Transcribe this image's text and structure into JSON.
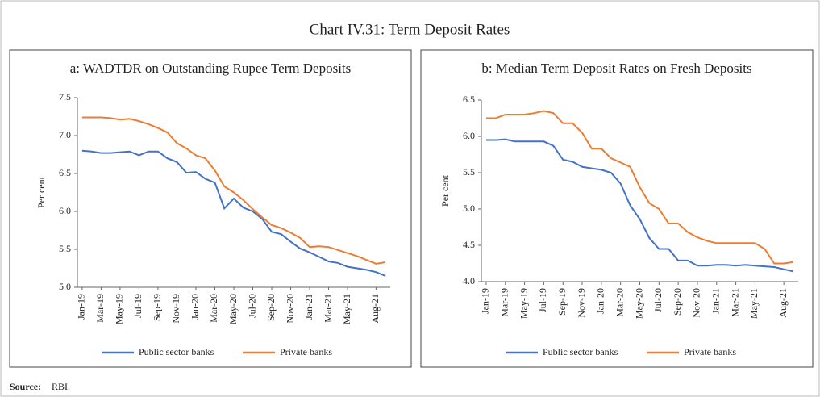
{
  "title": "Chart IV.31: Term Deposit Rates",
  "source_label": "Source:",
  "source": "RBI.",
  "chart_data": [
    {
      "type": "line",
      "title": "a: WADTDR on Outstanding Rupee Term Deposits",
      "y_label": "Per cent",
      "categories": [
        "Jan-19",
        null,
        "Mar-19",
        null,
        "May-19",
        null,
        "Jul-19",
        null,
        "Sep-19",
        null,
        "Nov-19",
        null,
        "Jan-20",
        null,
        "Mar-20",
        null,
        "May-20",
        null,
        "Jul-20",
        null,
        "Sep-20",
        null,
        "Nov-20",
        null,
        "Jan-21",
        null,
        "Mar-21",
        null,
        "May-21",
        null,
        null,
        "Aug-21",
        null
      ],
      "ylim": [
        5.0,
        7.5
      ],
      "yticks": [
        {
          "value": 5.0,
          "label": "5.0"
        },
        5.5,
        {
          "value": 6.0,
          "label": "6.0"
        },
        6.5,
        {
          "value": 7.0,
          "label": "7.0"
        },
        7.5
      ],
      "series": [
        {
          "name": "Public sector banks",
          "color": "#4472c4",
          "values": [
            6.8,
            6.79,
            6.77,
            6.77,
            6.78,
            6.79,
            6.74,
            6.79,
            6.79,
            6.7,
            6.65,
            6.51,
            6.52,
            6.43,
            6.38,
            6.04,
            6.17,
            6.05,
            6.0,
            5.9,
            5.73,
            5.7,
            5.6,
            5.51,
            5.46,
            5.4,
            5.34,
            5.32,
            5.27,
            5.25,
            5.23,
            5.2,
            5.15
          ]
        },
        {
          "name": "Private banks",
          "color": "#ed7d31",
          "values": [
            7.24,
            7.24,
            7.24,
            7.23,
            7.21,
            7.22,
            7.19,
            7.15,
            7.1,
            7.04,
            6.9,
            6.83,
            6.74,
            6.7,
            6.54,
            6.33,
            6.25,
            6.15,
            6.03,
            5.92,
            5.82,
            5.78,
            5.72,
            5.65,
            5.53,
            5.54,
            5.53,
            5.49,
            5.45,
            5.41,
            5.36,
            5.31,
            5.33
          ]
        }
      ]
    },
    {
      "type": "line",
      "title": "b: Median Term Deposit Rates on Fresh Deposits",
      "y_label": "Per cent",
      "categories": [
        "Jan-19",
        null,
        "Mar-19",
        null,
        "May-19",
        null,
        "Jul-19",
        null,
        "Sep-19",
        null,
        "Nov-19",
        null,
        "Jan-20",
        null,
        "Mar-20",
        null,
        "May-20",
        null,
        "Jul-20",
        null,
        "Sep-20",
        null,
        "Nov-20",
        null,
        "Jan-21",
        null,
        "Mar-21",
        null,
        "May-21",
        null,
        null,
        "Aug-21",
        null
      ],
      "ylim": [
        4.0,
        6.5
      ],
      "yticks": [
        {
          "value": 4.0,
          "label": "4.0"
        },
        4.5,
        {
          "value": 5.0,
          "label": "5.0"
        },
        5.5,
        {
          "value": 6.0,
          "label": "6.0"
        },
        6.5
      ],
      "series": [
        {
          "name": "Public sector banks",
          "color": "#4472c4",
          "values": [
            5.95,
            5.95,
            5.96,
            5.93,
            5.93,
            5.93,
            5.93,
            5.87,
            5.68,
            5.65,
            5.58,
            5.56,
            5.54,
            5.5,
            5.35,
            5.05,
            4.86,
            4.6,
            4.45,
            4.45,
            4.29,
            4.29,
            4.22,
            4.22,
            4.23,
            4.23,
            4.22,
            4.23,
            4.22,
            4.21,
            4.2,
            4.17,
            4.14
          ]
        },
        {
          "name": "Private banks",
          "color": "#ed7d31",
          "values": [
            6.25,
            6.25,
            6.3,
            6.3,
            6.3,
            6.32,
            6.35,
            6.32,
            6.18,
            6.18,
            6.05,
            5.83,
            5.83,
            5.7,
            5.64,
            5.58,
            5.3,
            5.08,
            5.0,
            4.8,
            4.8,
            4.68,
            4.61,
            4.56,
            4.53,
            4.53,
            4.53,
            4.53,
            4.53,
            4.45,
            4.25,
            4.25,
            4.27
          ]
        }
      ]
    }
  ]
}
